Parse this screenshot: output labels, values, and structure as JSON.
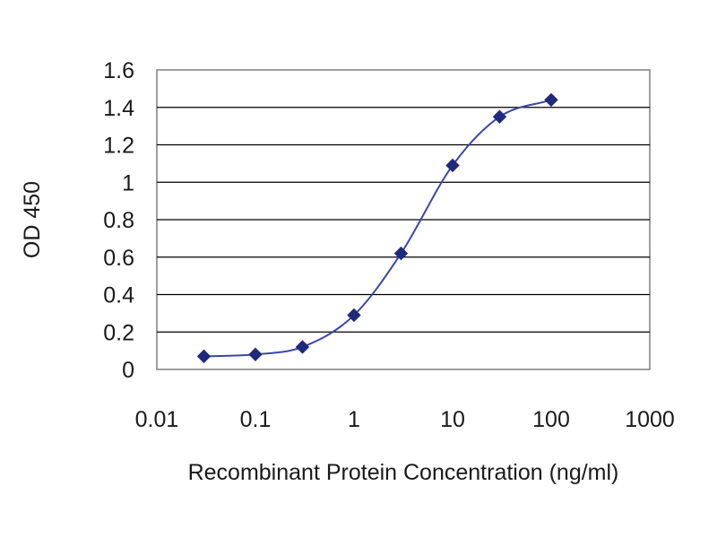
{
  "chart_data": {
    "type": "scatter",
    "title": "",
    "xlabel": "Recombinant Protein Concentration (ng/ml)",
    "ylabel": "OD 450",
    "x_scale": "log",
    "xlim": [
      0.01,
      1000
    ],
    "ylim": [
      0,
      1.6
    ],
    "x_ticks": [
      0.01,
      0.1,
      1,
      10,
      100,
      1000
    ],
    "x_tick_labels": [
      "0.01",
      "0.1",
      "1",
      "10",
      "100",
      "1000"
    ],
    "y_ticks": [
      0,
      0.2,
      0.4,
      0.6,
      0.8,
      1,
      1.2,
      1.4,
      1.6
    ],
    "y_tick_labels": [
      "0",
      "0.2",
      "0.4",
      "0.6",
      "0.8",
      "1",
      "1.2",
      "1.4",
      "1.6"
    ],
    "grid": "horizontal",
    "legend": "none",
    "series": [
      {
        "x": [
          0.03,
          0.1,
          0.3,
          1,
          3,
          10,
          30,
          100
        ],
        "y": [
          0.07,
          0.08,
          0.12,
          0.29,
          0.62,
          1.09,
          1.35,
          1.44
        ],
        "marker": "diamond",
        "fit": "sigmoid",
        "color": "#1f2a7a"
      }
    ],
    "colors": {
      "series": "#1f2a7a",
      "curve": "#3a47a6",
      "grid": "#000000",
      "frame": "#7f7f7f",
      "text": "#1a1a1a"
    }
  }
}
